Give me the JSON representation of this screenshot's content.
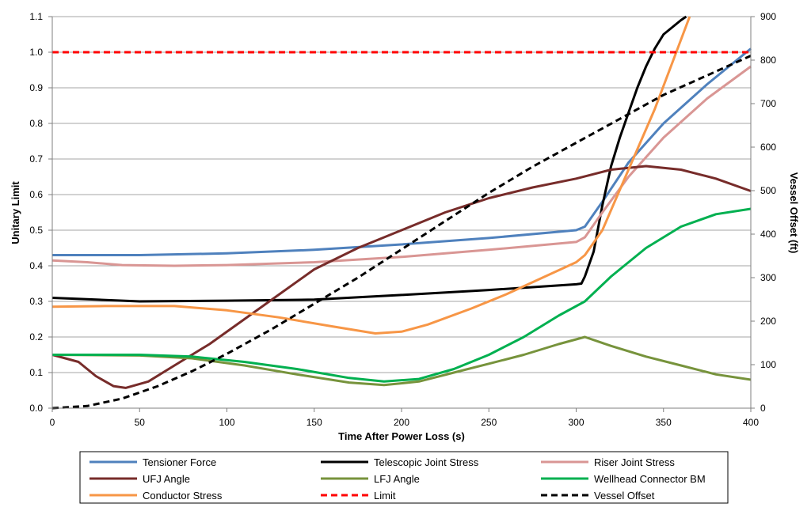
{
  "chart_data": {
    "type": "line",
    "xlabel": "Time After Power Loss (s)",
    "ylabel": "Unitary Limit",
    "y2label": "Vessel Offset (ft)",
    "xlim": [
      0,
      400
    ],
    "ylim": [
      0,
      1.1
    ],
    "y2lim": [
      0,
      900
    ],
    "xticks": [
      "0",
      "50",
      "100",
      "150",
      "200",
      "250",
      "300",
      "350",
      "400"
    ],
    "yticks": [
      "0.0",
      "0.1",
      "0.2",
      "0.3",
      "0.4",
      "0.5",
      "0.6",
      "0.7",
      "0.8",
      "0.9",
      "1.0",
      "1.1"
    ],
    "y2ticks": [
      "0",
      "100",
      "200",
      "300",
      "400",
      "500",
      "600",
      "700",
      "800",
      "900"
    ],
    "grid": "horizontal",
    "legend_position": "bottom",
    "series": [
      {
        "name": "Tensioner Force",
        "color": "#4f81bd",
        "dash": "solid",
        "axis": "left",
        "points": [
          [
            0,
            0.43
          ],
          [
            50,
            0.43
          ],
          [
            100,
            0.435
          ],
          [
            150,
            0.445
          ],
          [
            200,
            0.46
          ],
          [
            250,
            0.478
          ],
          [
            300,
            0.5
          ],
          [
            305,
            0.51
          ],
          [
            315,
            0.58
          ],
          [
            330,
            0.69
          ],
          [
            350,
            0.8
          ],
          [
            375,
            0.91
          ],
          [
            400,
            1.01
          ]
        ]
      },
      {
        "name": "Telescopic Joint Stress",
        "color": "#000000",
        "dash": "solid",
        "axis": "left",
        "points": [
          [
            0,
            0.31
          ],
          [
            50,
            0.3
          ],
          [
            100,
            0.302
          ],
          [
            150,
            0.305
          ],
          [
            200,
            0.318
          ],
          [
            250,
            0.332
          ],
          [
            300,
            0.348
          ],
          [
            303,
            0.35
          ],
          [
            305,
            0.37
          ],
          [
            310,
            0.44
          ],
          [
            315,
            0.57
          ],
          [
            320,
            0.68
          ],
          [
            325,
            0.76
          ],
          [
            330,
            0.83
          ],
          [
            335,
            0.9
          ],
          [
            340,
            0.96
          ],
          [
            345,
            1.01
          ],
          [
            350,
            1.05
          ],
          [
            360,
            1.09
          ],
          [
            363,
            1.1
          ]
        ]
      },
      {
        "name": "Riser Joint Stress",
        "color": "#d99694",
        "dash": "solid",
        "axis": "left",
        "points": [
          [
            0,
            0.415
          ],
          [
            20,
            0.41
          ],
          [
            40,
            0.402
          ],
          [
            70,
            0.4
          ],
          [
            100,
            0.402
          ],
          [
            150,
            0.41
          ],
          [
            200,
            0.425
          ],
          [
            250,
            0.445
          ],
          [
            300,
            0.467
          ],
          [
            305,
            0.48
          ],
          [
            315,
            0.55
          ],
          [
            330,
            0.65
          ],
          [
            350,
            0.76
          ],
          [
            375,
            0.87
          ],
          [
            400,
            0.96
          ]
        ]
      },
      {
        "name": "UFJ Angle",
        "color": "#772c2a",
        "dash": "solid",
        "axis": "left",
        "points": [
          [
            0,
            0.15
          ],
          [
            15,
            0.13
          ],
          [
            25,
            0.09
          ],
          [
            35,
            0.062
          ],
          [
            42,
            0.057
          ],
          [
            55,
            0.075
          ],
          [
            70,
            0.12
          ],
          [
            90,
            0.18
          ],
          [
            110,
            0.25
          ],
          [
            130,
            0.32
          ],
          [
            150,
            0.39
          ],
          [
            175,
            0.45
          ],
          [
            200,
            0.5
          ],
          [
            225,
            0.55
          ],
          [
            250,
            0.59
          ],
          [
            275,
            0.62
          ],
          [
            300,
            0.645
          ],
          [
            320,
            0.67
          ],
          [
            340,
            0.68
          ],
          [
            360,
            0.67
          ],
          [
            380,
            0.645
          ],
          [
            400,
            0.61
          ]
        ]
      },
      {
        "name": "LFJ Angle",
        "color": "#77933c",
        "dash": "solid",
        "axis": "left",
        "points": [
          [
            0,
            0.15
          ],
          [
            50,
            0.148
          ],
          [
            80,
            0.14
          ],
          [
            110,
            0.12
          ],
          [
            140,
            0.095
          ],
          [
            170,
            0.072
          ],
          [
            190,
            0.065
          ],
          [
            210,
            0.075
          ],
          [
            230,
            0.1
          ],
          [
            250,
            0.125
          ],
          [
            270,
            0.15
          ],
          [
            290,
            0.18
          ],
          [
            305,
            0.2
          ],
          [
            320,
            0.175
          ],
          [
            340,
            0.145
          ],
          [
            360,
            0.12
          ],
          [
            380,
            0.095
          ],
          [
            400,
            0.08
          ]
        ]
      },
      {
        "name": "Wellhead Connector BM",
        "color": "#00b050",
        "dash": "solid",
        "axis": "left",
        "points": [
          [
            0,
            0.15
          ],
          [
            50,
            0.15
          ],
          [
            80,
            0.145
          ],
          [
            110,
            0.13
          ],
          [
            140,
            0.11
          ],
          [
            170,
            0.085
          ],
          [
            190,
            0.075
          ],
          [
            210,
            0.082
          ],
          [
            230,
            0.11
          ],
          [
            250,
            0.15
          ],
          [
            270,
            0.2
          ],
          [
            290,
            0.26
          ],
          [
            305,
            0.3
          ],
          [
            320,
            0.37
          ],
          [
            340,
            0.45
          ],
          [
            360,
            0.51
          ],
          [
            380,
            0.545
          ],
          [
            400,
            0.56
          ]
        ]
      },
      {
        "name": "Conductor Stress",
        "color": "#f79646",
        "dash": "solid",
        "axis": "left",
        "points": [
          [
            0,
            0.285
          ],
          [
            30,
            0.287
          ],
          [
            70,
            0.287
          ],
          [
            100,
            0.275
          ],
          [
            130,
            0.255
          ],
          [
            160,
            0.23
          ],
          [
            185,
            0.21
          ],
          [
            200,
            0.215
          ],
          [
            215,
            0.235
          ],
          [
            240,
            0.28
          ],
          [
            260,
            0.32
          ],
          [
            280,
            0.365
          ],
          [
            300,
            0.41
          ],
          [
            305,
            0.43
          ],
          [
            315,
            0.5
          ],
          [
            330,
            0.67
          ],
          [
            345,
            0.84
          ],
          [
            355,
            0.97
          ],
          [
            365,
            1.1
          ]
        ]
      },
      {
        "name": "Limit",
        "color": "#ff0000",
        "dash": "dashed",
        "axis": "left",
        "points": [
          [
            0,
            1.0
          ],
          [
            400,
            1.0
          ]
        ]
      },
      {
        "name": "Vessel Offset",
        "color": "#000000",
        "dash": "dashed",
        "axis": "right",
        "points": [
          [
            0,
            0
          ],
          [
            20,
            5
          ],
          [
            40,
            22
          ],
          [
            60,
            50
          ],
          [
            80,
            85
          ],
          [
            100,
            125
          ],
          [
            125,
            180
          ],
          [
            150,
            240
          ],
          [
            175,
            300
          ],
          [
            200,
            365
          ],
          [
            225,
            430
          ],
          [
            250,
            495
          ],
          [
            275,
            555
          ],
          [
            300,
            610
          ],
          [
            325,
            665
          ],
          [
            350,
            720
          ],
          [
            375,
            765
          ],
          [
            400,
            810
          ]
        ]
      }
    ]
  }
}
